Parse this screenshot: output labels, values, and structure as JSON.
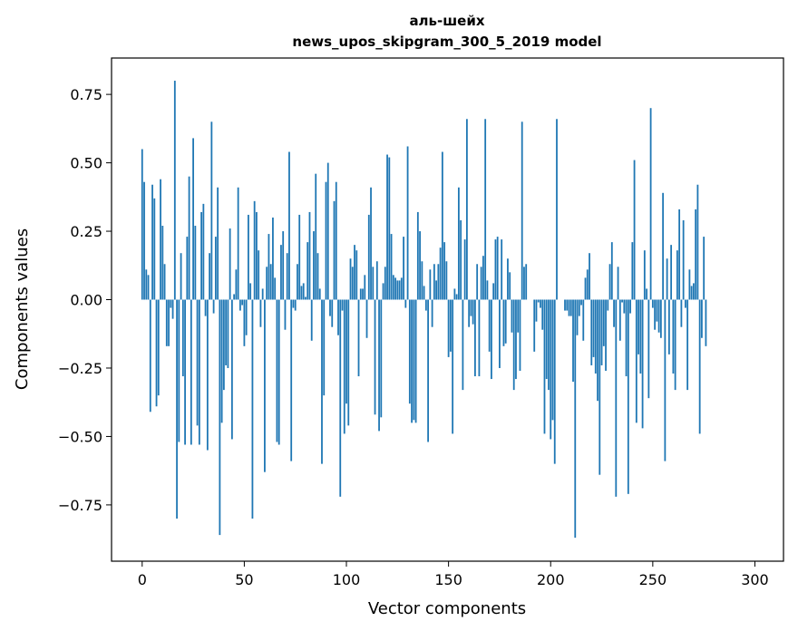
{
  "chart_data": {
    "type": "bar",
    "title": "аль-шейх",
    "subtitle": "news_upos_skipgram_300_5_2019 model",
    "xlabel": "Vector components",
    "ylabel": "Components values",
    "xlim": [
      -15,
      314
    ],
    "ylim": [
      -0.9557,
      0.8829
    ],
    "grid": false,
    "bar_color": "#1f77b4",
    "x_ticks": [
      0,
      50,
      100,
      150,
      200,
      250,
      300
    ],
    "y_ticks": [
      -0.75,
      -0.5,
      -0.25,
      0.0,
      0.25,
      0.5,
      0.75
    ],
    "x_tick_labels": [
      "0",
      "50",
      "100",
      "150",
      "200",
      "250",
      "300"
    ],
    "y_tick_labels": [
      "−0.75",
      "−0.50",
      "−0.25",
      "0.00",
      "0.25",
      "0.50",
      "0.75"
    ],
    "values": [
      0.55,
      0.43,
      0.11,
      0.09,
      -0.41,
      0.42,
      0.37,
      -0.39,
      -0.35,
      0.44,
      0.27,
      0.13,
      -0.17,
      -0.17,
      -0.03,
      -0.07,
      0.8,
      -0.8,
      -0.52,
      0.17,
      -0.28,
      -0.53,
      0.23,
      0.45,
      -0.53,
      0.59,
      0.27,
      -0.46,
      -0.53,
      0.32,
      0.35,
      -0.06,
      -0.55,
      0.17,
      0.65,
      -0.05,
      0.23,
      0.41,
      -0.86,
      -0.45,
      -0.33,
      -0.24,
      -0.25,
      0.26,
      -0.51,
      0.02,
      0.11,
      0.41,
      -0.04,
      -0.02,
      -0.17,
      -0.13,
      0.31,
      0.06,
      -0.8,
      0.36,
      0.32,
      0.18,
      -0.1,
      0.04,
      -0.63,
      0.12,
      0.24,
      0.13,
      0.3,
      0.08,
      -0.52,
      -0.53,
      0.2,
      0.25,
      -0.11,
      0.17,
      0.54,
      -0.59,
      -0.03,
      -0.04,
      0.13,
      0.31,
      0.05,
      0.06,
      0.01,
      0.21,
      0.32,
      -0.15,
      0.25,
      0.46,
      0.17,
      0.04,
      -0.6,
      -0.35,
      0.43,
      0.5,
      -0.06,
      -0.1,
      0.36,
      0.43,
      -0.13,
      -0.72,
      -0.04,
      -0.49,
      -0.38,
      -0.46,
      0.15,
      0.12,
      0.2,
      0.18,
      -0.28,
      0.04,
      0.04,
      0.09,
      -0.14,
      0.31,
      0.41,
      0.12,
      -0.42,
      0.14,
      -0.48,
      -0.43,
      0.06,
      0.12,
      0.53,
      0.52,
      0.24,
      0.09,
      0.08,
      0.07,
      0.07,
      0.08,
      0.23,
      -0.03,
      0.56,
      -0.38,
      -0.45,
      -0.44,
      -0.45,
      0.32,
      0.25,
      0.14,
      0.05,
      -0.04,
      -0.52,
      0.11,
      -0.1,
      0.13,
      0.07,
      0.13,
      0.19,
      0.54,
      0.21,
      0.14,
      -0.21,
      -0.19,
      -0.49,
      0.04,
      0.02,
      0.41,
      0.29,
      -0.33,
      0.22,
      0.66,
      -0.1,
      -0.06,
      -0.09,
      -0.28,
      0.13,
      -0.28,
      0.12,
      0.16,
      0.66,
      0.07,
      -0.19,
      -0.29,
      0.06,
      0.22,
      0.23,
      -0.25,
      0.22,
      -0.17,
      -0.16,
      0.15,
      0.1,
      -0.12,
      -0.33,
      -0.29,
      -0.12,
      -0.26,
      0.65,
      0.12,
      0.13,
      0.0,
      0.0,
      0.0,
      -0.19,
      -0.08,
      -0.01,
      -0.03,
      -0.11,
      -0.49,
      -0.29,
      -0.33,
      -0.51,
      -0.44,
      -0.6,
      0.66,
      0.0,
      0.0,
      0.0,
      -0.04,
      -0.04,
      -0.06,
      -0.06,
      -0.3,
      -0.87,
      -0.13,
      -0.06,
      -0.02,
      -0.15,
      0.08,
      0.11,
      0.17,
      -0.24,
      -0.21,
      -0.27,
      -0.37,
      -0.64,
      -0.24,
      -0.17,
      -0.26,
      -0.04,
      0.13,
      0.21,
      -0.1,
      -0.72,
      0.12,
      -0.15,
      -0.01,
      -0.05,
      -0.28,
      -0.71,
      -0.05,
      0.21,
      0.51,
      -0.45,
      -0.2,
      -0.27,
      -0.47,
      0.18,
      0.04,
      -0.36,
      0.7,
      -0.03,
      -0.11,
      -0.08,
      -0.12,
      -0.14,
      0.39,
      -0.59,
      0.15,
      -0.2,
      0.2,
      -0.27,
      -0.33,
      0.18,
      0.33,
      -0.1,
      0.29,
      -0.03,
      -0.33,
      0.11,
      0.05,
      0.06,
      0.33,
      0.42,
      -0.49,
      -0.14,
      0.23,
      -0.17
    ]
  }
}
